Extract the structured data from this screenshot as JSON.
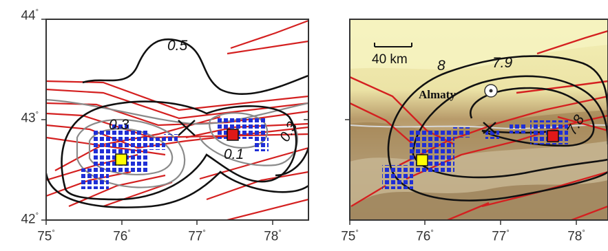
{
  "left_map": {
    "y_ticks": [
      "44",
      "43",
      "42"
    ],
    "x_ticks": [
      "75",
      "76",
      "77",
      "78"
    ],
    "contour_labels": [
      "0.5",
      "0.3",
      "0.3",
      "0.1"
    ]
  },
  "right_map": {
    "x_ticks": [
      "75",
      "76",
      "77",
      "78"
    ],
    "scale_bar_label": "40 km",
    "city_label": "Almaty",
    "contour_labels": [
      "8",
      "7.9",
      "7.8"
    ]
  },
  "degree_symbol": "°",
  "colors": {
    "fault": "#d42020",
    "contour_dark": "#111111",
    "contour_gray": "#8a8a8a",
    "event": "#1f2fd6",
    "marker_yellow": "#ffff00",
    "marker_red": "#e01818"
  }
}
